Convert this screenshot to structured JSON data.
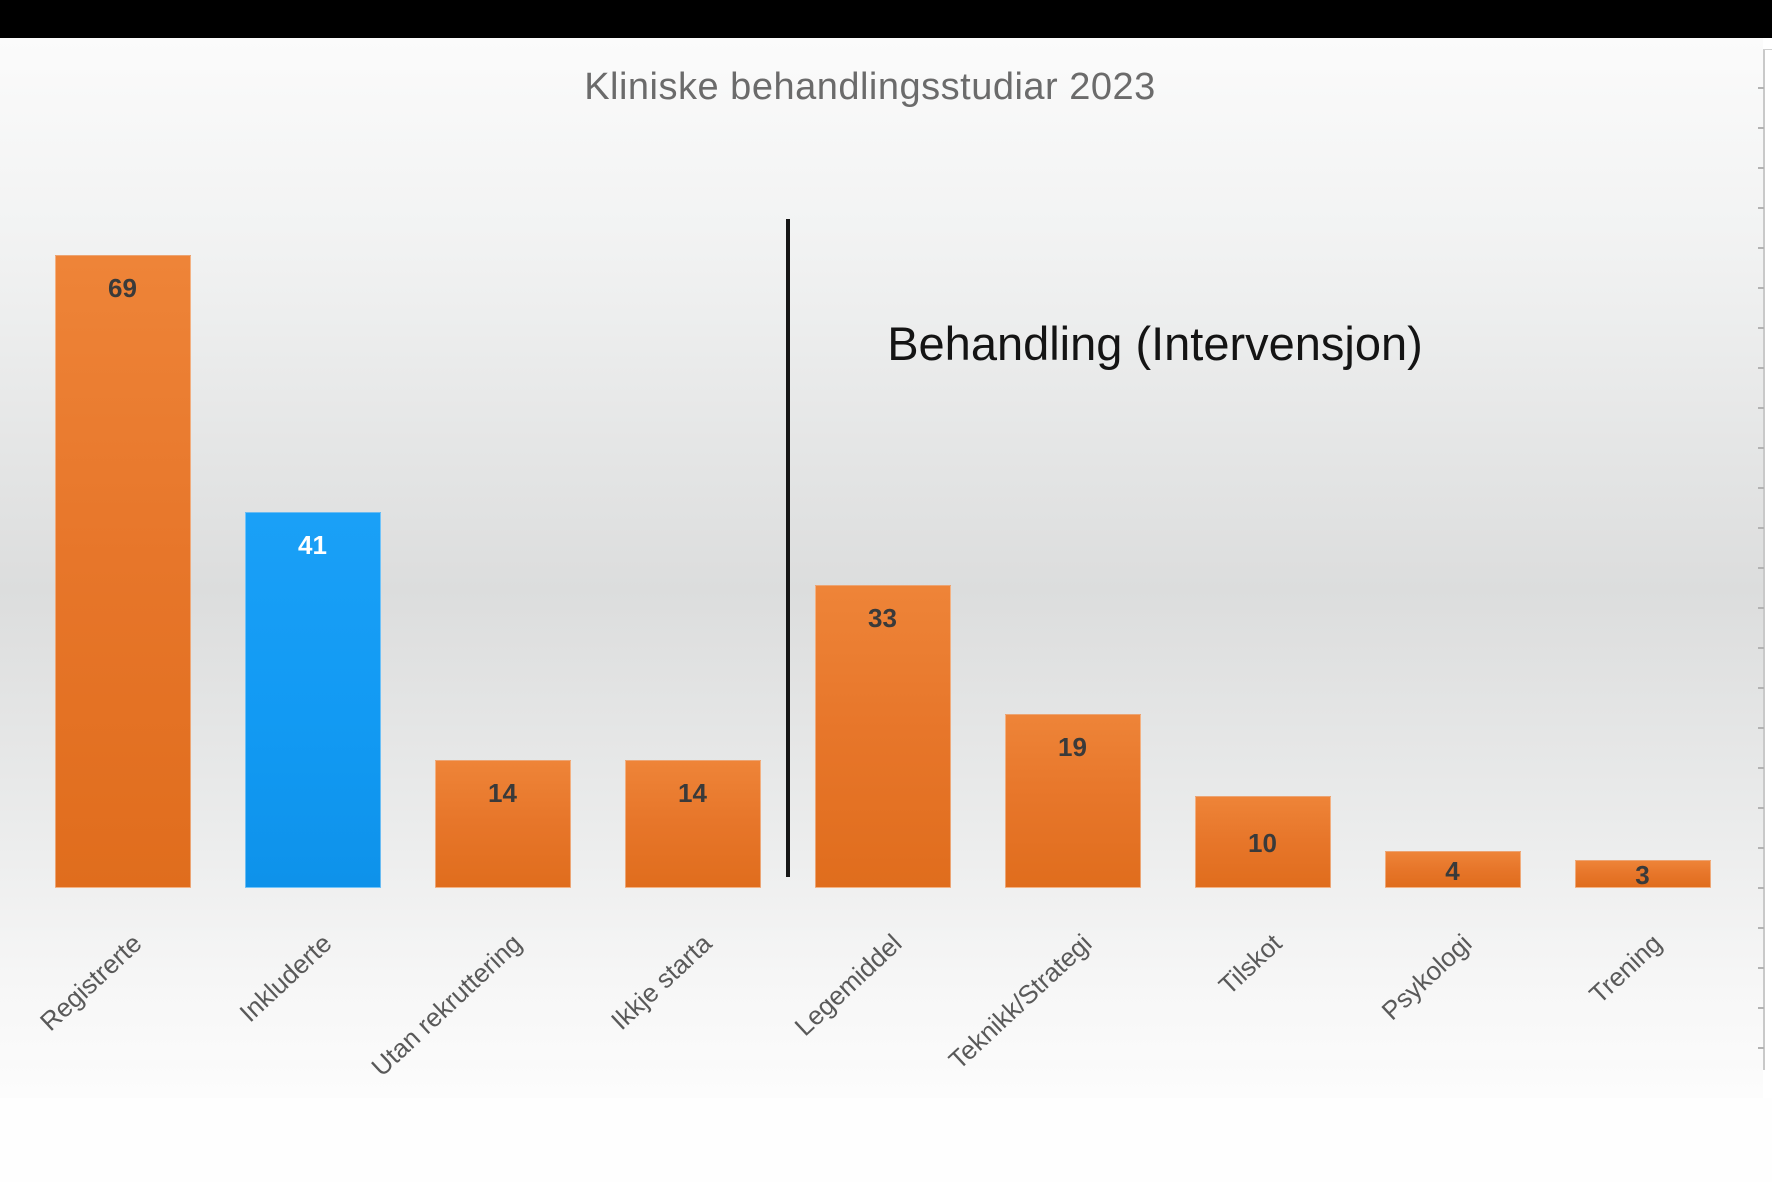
{
  "chart_data": {
    "type": "bar",
    "title": "Kliniske behandlingsstudiar 2023",
    "annotation": "Behandling (Intervensjon)",
    "categories": [
      "Registrerte",
      "Inkluderte",
      "Utan rekruttering",
      "Ikkje starta",
      "Legemiddel",
      "Teknikk/Strategi",
      "Tilskot",
      "Psykologi",
      "Trening"
    ],
    "values": [
      69,
      41,
      14,
      14,
      33,
      19,
      10,
      4,
      3
    ],
    "bar_color_keys": [
      "orange",
      "blue",
      "orange",
      "orange",
      "orange",
      "orange",
      "orange",
      "orange",
      "orange"
    ],
    "value_label_colors": [
      "dark",
      "light",
      "dark",
      "dark",
      "dark",
      "dark",
      "dark",
      "dark",
      "dark"
    ],
    "divider_between": [
      "Ikkje starta",
      "Legemiddel"
    ],
    "xlabel": "",
    "ylabel": "",
    "ylim": [
      0,
      72
    ],
    "grid": false,
    "legend": false,
    "colors": {
      "orange": "#e7762a",
      "blue": "#129af3",
      "value_label_dark": "#3a3a3a",
      "value_label_light": "#ffffff",
      "category_label": "#595959",
      "title": "#6b6b6b",
      "annotation": "#141414",
      "divider": "#161616",
      "letterbox": "#000000"
    }
  }
}
